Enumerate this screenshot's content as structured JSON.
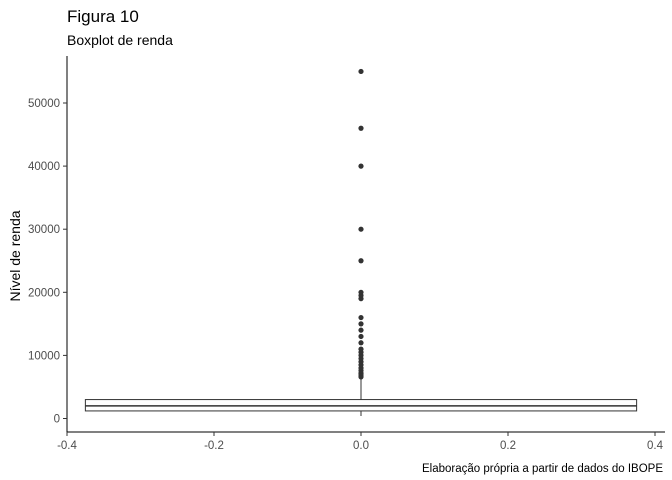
{
  "chart_data": {
    "type": "boxplot",
    "title": "Figura 10",
    "subtitle": "Boxplot de renda",
    "ylabel": "Nível de renda",
    "xlabel": "",
    "caption": "Elaboração própria a partir de dados do IBOPE",
    "xlim": [
      -0.4,
      0.4
    ],
    "ylim": [
      -2000,
      57000
    ],
    "x_ticks": [
      -0.4,
      -0.2,
      0.0,
      0.2,
      0.4
    ],
    "x_tick_labels": [
      "-0.4",
      "-0.2",
      "0.0",
      "0.2",
      "0.4"
    ],
    "y_ticks": [
      0,
      10000,
      20000,
      30000,
      40000,
      50000
    ],
    "y_tick_labels": [
      "0",
      "10000",
      "20000",
      "30000",
      "40000",
      "50000"
    ],
    "grid": false,
    "box": {
      "x_center": 0.0,
      "x_min": -0.375,
      "x_max": 0.375,
      "lower_whisker": 400,
      "q1": 1200,
      "median": 2000,
      "q3": 3000,
      "upper_whisker": 6500
    },
    "outliers": [
      6600,
      6900,
      7200,
      7600,
      8000,
      8500,
      9000,
      9500,
      10000,
      10500,
      11000,
      12000,
      13000,
      14000,
      15000,
      16000,
      19000,
      19500,
      20000,
      25000,
      30000,
      40000,
      46000,
      55000
    ]
  }
}
